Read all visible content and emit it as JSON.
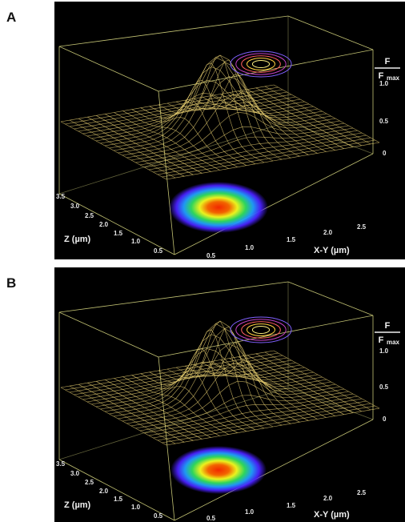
{
  "figure": {
    "panels": [
      {
        "letter": "A",
        "ratio_label_numerator": "F",
        "ratio_label_denominator": "F",
        "ratio_label_subscript": "max",
        "vertical_ticks": [
          "1.0",
          "0.5",
          "0"
        ],
        "z_axis_label": "Z (µm)",
        "z_ticks": [
          "3.5",
          "3.0",
          "2.5",
          "2.0",
          "1.5",
          "1.0",
          "0.5"
        ],
        "xy_axis_label": "X-Y (µm)",
        "xy_ticks": [
          "0.5",
          "1.0",
          "1.5",
          "2.0",
          "2.5"
        ]
      },
      {
        "letter": "B",
        "ratio_label_numerator": "F",
        "ratio_label_denominator": "F",
        "ratio_label_subscript": "max",
        "vertical_ticks": [
          "1.0",
          "0.5",
          "0"
        ],
        "z_axis_label": "Z (µm)",
        "z_ticks": [
          "3.5",
          "3.0",
          "2.5",
          "2.0",
          "1.5",
          "1.0",
          "0.5"
        ],
        "xy_axis_label": "X-Y (µm)",
        "xy_ticks": [
          "0.5",
          "1.0",
          "1.5",
          "2.0",
          "2.5"
        ]
      }
    ]
  },
  "colors": {
    "background": "#000000",
    "box_lines": "#d8d880",
    "mesh": "#e8d070",
    "contours": [
      "#8060ff",
      "#c040c0",
      "#ff6060",
      "#ffd040",
      "#fff080"
    ]
  },
  "panel_peaks": [
    {
      "sigma_x": 0.32,
      "sigma_y": 0.38
    },
    {
      "sigma_x": 0.3,
      "sigma_y": 0.36
    }
  ]
}
